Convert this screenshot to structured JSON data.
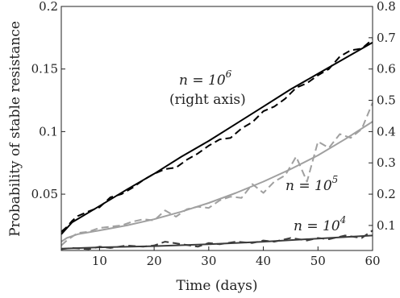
{
  "chart_data": {
    "type": "line",
    "xlabel": "Time (days)",
    "ylabel": "Probability of stable resistance",
    "xlim": [
      3,
      60
    ],
    "ylim_left": [
      0.005,
      0.2
    ],
    "ylim_right": [
      0.02,
      0.8
    ],
    "x_ticks": [
      10,
      20,
      30,
      40,
      50,
      60
    ],
    "y_ticks_left": [
      0.05,
      0.1,
      0.15,
      0.2
    ],
    "y_ticks_right": [
      0.1,
      0.2,
      0.3,
      0.4,
      0.5,
      0.6,
      0.7,
      0.8
    ],
    "annotations": [
      {
        "line1": "n = 10",
        "sup": "6",
        "line2": "(right axis)"
      },
      {
        "line1": "n = 10",
        "sup": "5"
      },
      {
        "line1": "n = 10",
        "sup": "4"
      }
    ],
    "colors": {
      "n1e6": "#000000",
      "n1e5": "#a0a0a0",
      "n1e4": "#3c3c3c"
    },
    "series": [
      {
        "id": "n1e6_fit",
        "axis": "right",
        "style": "solid",
        "color_key": "n1e6",
        "x": [
          3,
          5,
          10,
          15,
          20,
          25,
          30,
          35,
          40,
          45,
          50,
          55,
          60
        ],
        "y": [
          0.072,
          0.11,
          0.162,
          0.215,
          0.265,
          0.32,
          0.37,
          0.425,
          0.48,
          0.535,
          0.585,
          0.635,
          0.685
        ]
      },
      {
        "id": "n1e6_sim",
        "axis": "right",
        "style": "dashed",
        "color_key": "n1e6",
        "x": [
          3,
          4,
          5,
          6,
          8,
          10,
          12,
          14,
          16,
          18,
          20,
          22,
          24,
          26,
          28,
          30,
          32,
          34,
          36,
          38,
          40,
          42,
          44,
          46,
          48,
          50,
          52,
          54,
          56,
          58,
          60
        ],
        "y": [
          0.08,
          0.095,
          0.115,
          0.13,
          0.145,
          0.158,
          0.19,
          0.2,
          0.22,
          0.245,
          0.265,
          0.28,
          0.285,
          0.31,
          0.33,
          0.355,
          0.375,
          0.38,
          0.41,
          0.43,
          0.465,
          0.48,
          0.505,
          0.54,
          0.555,
          0.58,
          0.6,
          0.64,
          0.66,
          0.665,
          0.695
        ]
      },
      {
        "id": "n1e5_fit",
        "axis": "left",
        "style": "solid",
        "color_key": "n1e5",
        "x": [
          3,
          4,
          6,
          10,
          15,
          20,
          25,
          30,
          35,
          40,
          45,
          50,
          55,
          60
        ],
        "y": [
          0.012,
          0.015,
          0.018,
          0.021,
          0.025,
          0.03,
          0.036,
          0.043,
          0.051,
          0.06,
          0.07,
          0.081,
          0.094,
          0.108
        ]
      },
      {
        "id": "n1e5_sim",
        "axis": "left",
        "style": "dashed",
        "color_key": "n1e5",
        "x": [
          3,
          4,
          5,
          6,
          8,
          10,
          12,
          14,
          16,
          18,
          20,
          22,
          24,
          26,
          28,
          30,
          32,
          34,
          36,
          38,
          40,
          42,
          44,
          46,
          48,
          50,
          52,
          54,
          56,
          58,
          60
        ],
        "y": [
          0.009,
          0.013,
          0.016,
          0.019,
          0.02,
          0.023,
          0.024,
          0.025,
          0.028,
          0.03,
          0.029,
          0.037,
          0.032,
          0.038,
          0.04,
          0.039,
          0.045,
          0.048,
          0.047,
          0.058,
          0.051,
          0.06,
          0.065,
          0.08,
          0.06,
          0.092,
          0.087,
          0.098,
          0.095,
          0.102,
          0.123
        ]
      },
      {
        "id": "n1e4_fit",
        "axis": "left",
        "style": "solid",
        "color_key": "n1e4",
        "x": [
          3,
          10,
          20,
          30,
          40,
          50,
          60
        ],
        "y": [
          0.0065,
          0.0075,
          0.0085,
          0.01,
          0.012,
          0.0145,
          0.017
        ]
      },
      {
        "id": "n1e4_sim",
        "axis": "left",
        "style": "dashed",
        "color_key": "n1e4",
        "x": [
          3,
          5,
          8,
          10,
          12,
          15,
          18,
          20,
          22,
          25,
          28,
          30,
          32,
          35,
          38,
          40,
          42,
          45,
          48,
          50,
          52,
          55,
          58,
          60
        ],
        "y": [
          0.006,
          0.007,
          0.006,
          0.008,
          0.007,
          0.009,
          0.008,
          0.009,
          0.012,
          0.01,
          0.008,
          0.011,
          0.01,
          0.012,
          0.011,
          0.013,
          0.012,
          0.015,
          0.013,
          0.015,
          0.014,
          0.017,
          0.015,
          0.021
        ]
      }
    ]
  }
}
